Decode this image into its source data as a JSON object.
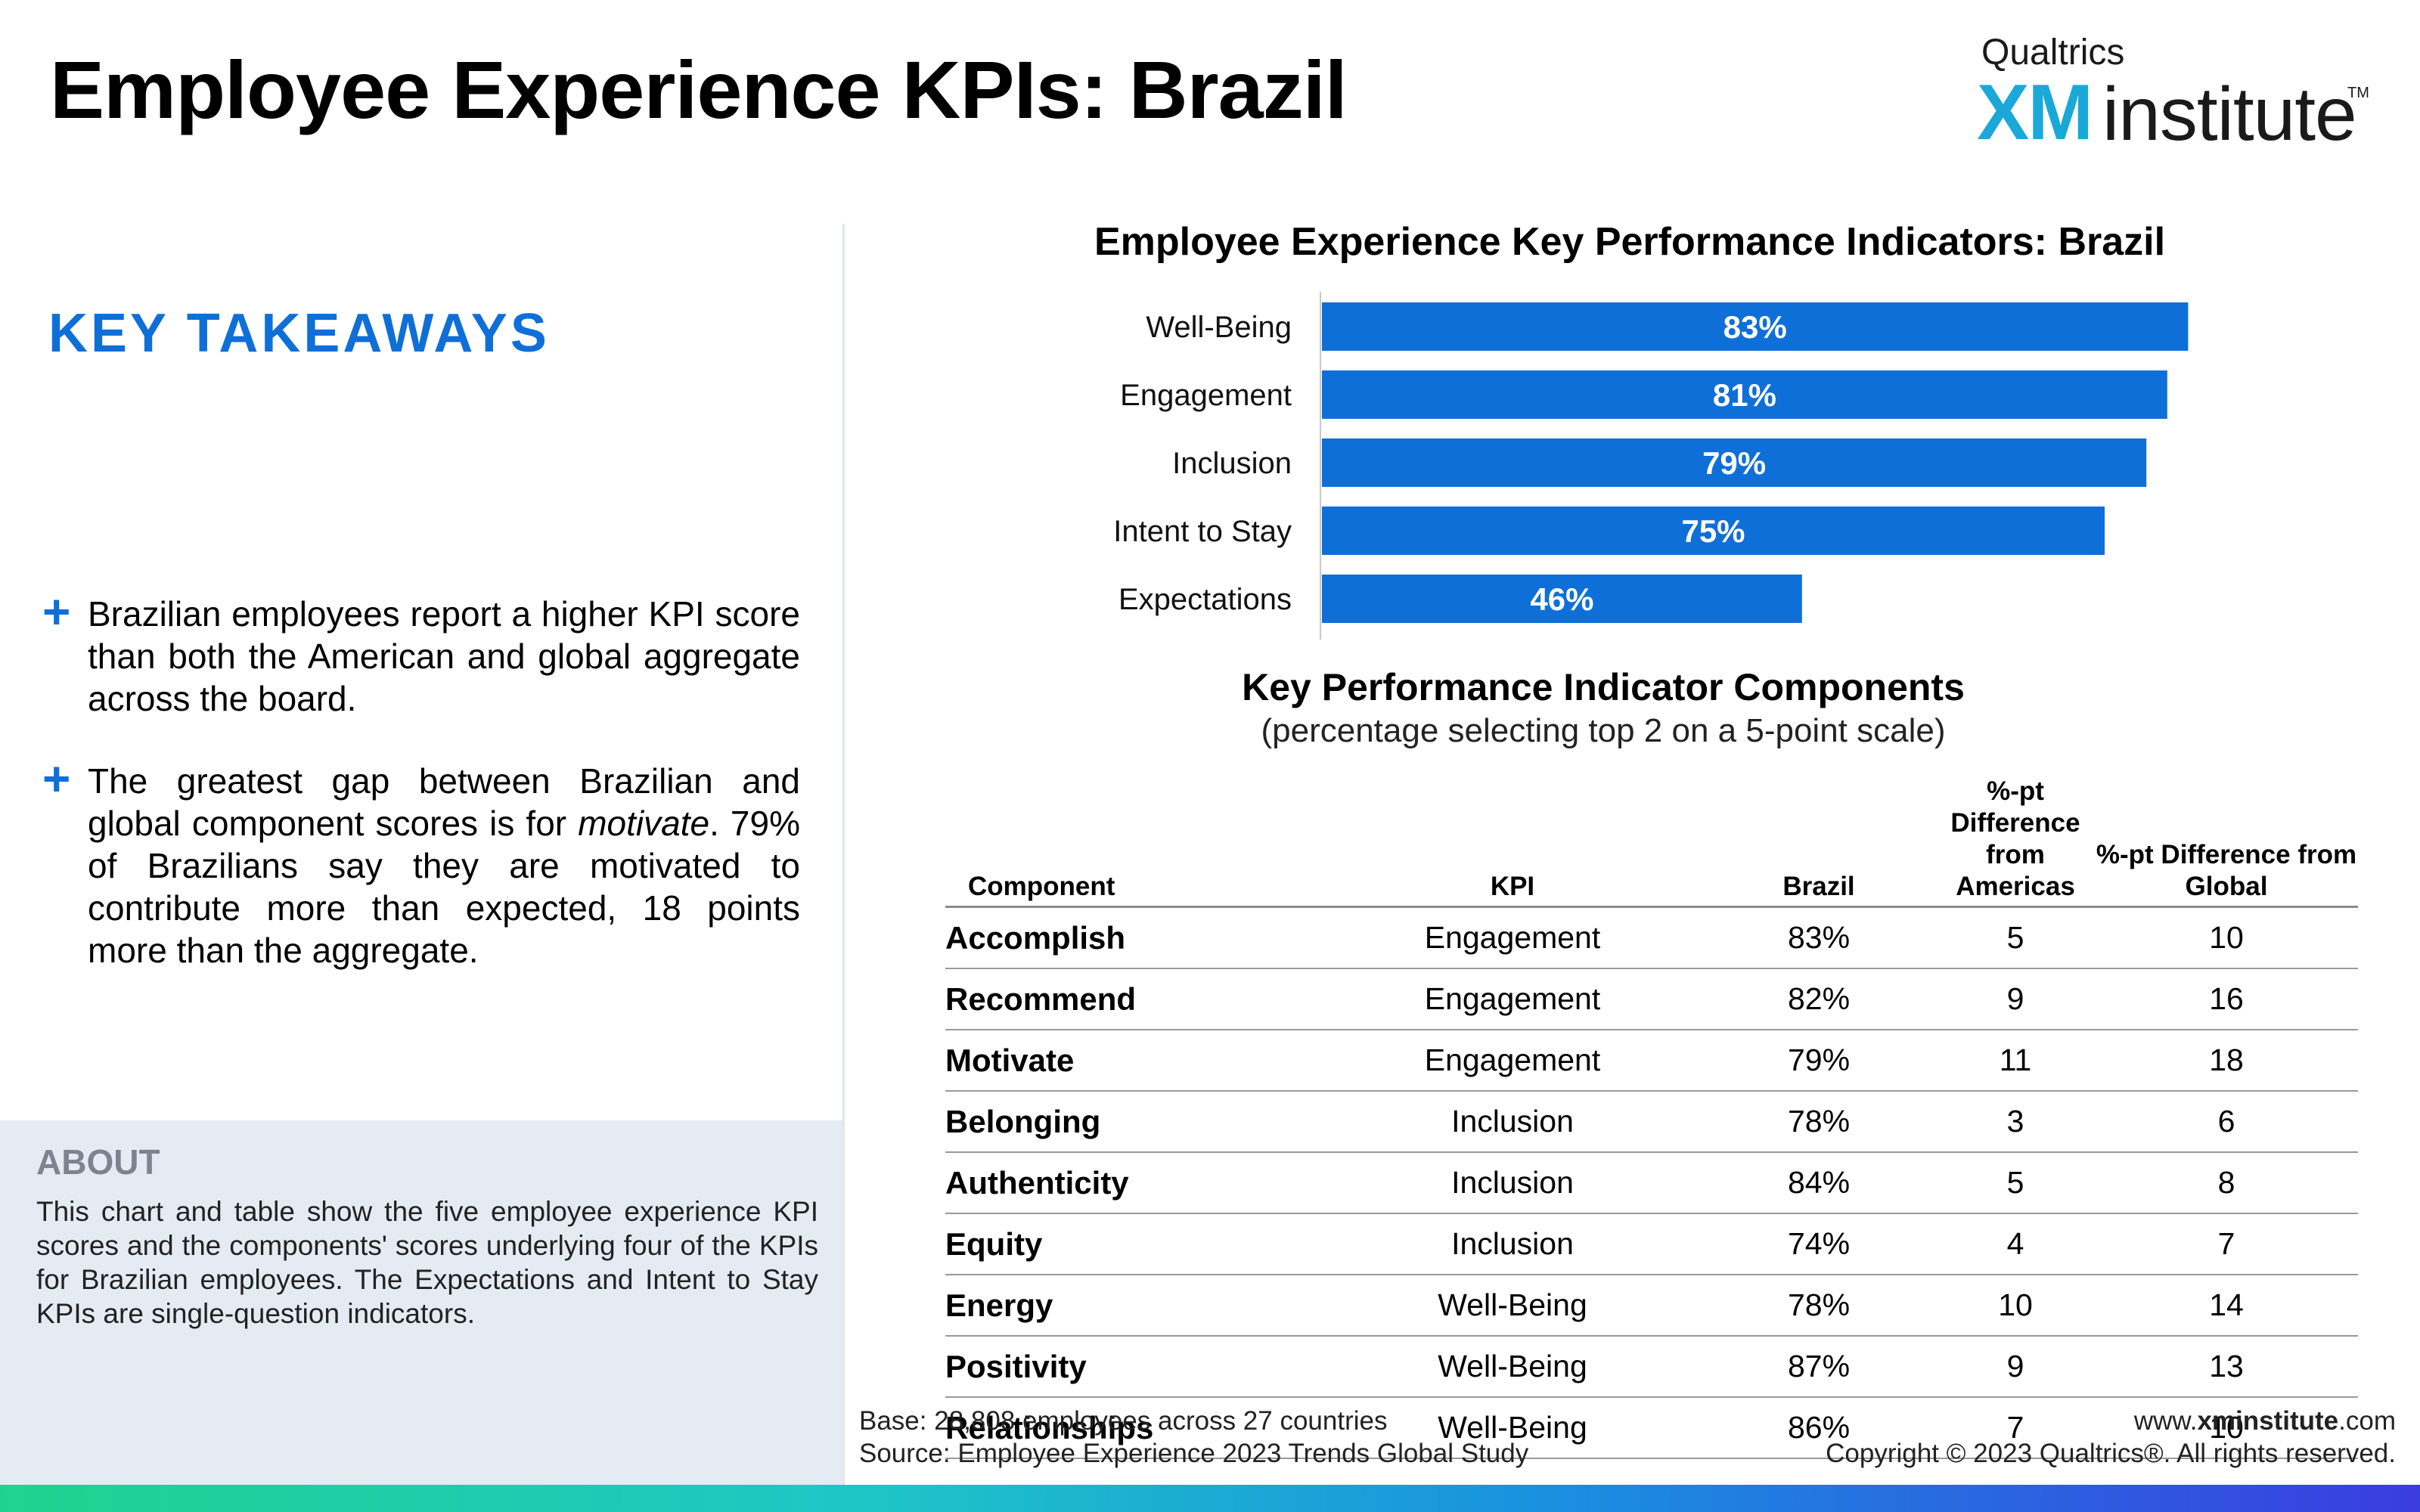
{
  "header": {
    "title": "Employee Experience KPIs: Brazil",
    "logo": {
      "top": "Qualtrics",
      "xm": "XM",
      "word": "institute",
      "tm": "TM"
    }
  },
  "takeaways": {
    "heading": "KEY TAKEAWAYS",
    "bullet_icon": "+",
    "items": [
      {
        "text": "Brazilian employees report a higher KPI score than both the American and global aggregate across the board."
      },
      {
        "pre": "The greatest gap between Brazilian and global component scores is for ",
        "em": "motivate",
        "post": ". 79% of Brazilians say they are motivated to contribute more than expected, 18 points more than the aggregate."
      }
    ]
  },
  "about": {
    "heading": "ABOUT",
    "text": "This chart and table show the five employee experience KPI scores and the components' scores underlying four of the KPIs for Brazilian employees. The Expectations and Intent to Stay KPIs are single-question indicators."
  },
  "chart_data": {
    "type": "bar",
    "orientation": "horizontal",
    "title": "Employee Experience Key Performance Indicators: Brazil",
    "categories": [
      "Well-Being",
      "Engagement",
      "Inclusion",
      "Intent to Stay",
      "Expectations"
    ],
    "values": [
      83,
      81,
      79,
      75,
      46
    ],
    "value_labels": [
      "83%",
      "81%",
      "79%",
      "75%",
      "46%"
    ],
    "unit": "%",
    "xlim": [
      0,
      100
    ],
    "bar_color": "#0f6fd8",
    "grid": false,
    "legend": "none"
  },
  "table": {
    "title": "Key Performance Indicator Components",
    "subtitle": "(percentage selecting top 2 on a 5-point scale)",
    "headers": [
      "Component",
      "KPI",
      "Brazil",
      "%-pt Difference from Americas",
      "%-pt Difference from Global"
    ],
    "rows": [
      [
        "Accomplish",
        "Engagement",
        "83%",
        "5",
        "10"
      ],
      [
        "Recommend",
        "Engagement",
        "82%",
        "9",
        "16"
      ],
      [
        "Motivate",
        "Engagement",
        "79%",
        "11",
        "18"
      ],
      [
        "Belonging",
        "Inclusion",
        "78%",
        "3",
        "6"
      ],
      [
        "Authenticity",
        "Inclusion",
        "84%",
        "5",
        "8"
      ],
      [
        "Equity",
        "Inclusion",
        "74%",
        "4",
        "7"
      ],
      [
        "Energy",
        "Well-Being",
        "78%",
        "10",
        "14"
      ],
      [
        "Positivity",
        "Well-Being",
        "87%",
        "9",
        "13"
      ],
      [
        "Relationships",
        "Well-Being",
        "86%",
        "7",
        "10"
      ]
    ]
  },
  "footer": {
    "base": "Base: 28,808 employees across 27 countries",
    "source": "Source: Employee Experience 2023 Trends Global Study",
    "site_prefix": "www.",
    "site_bold": "xminstitute",
    "site_suffix": ".com",
    "copyright": "Copyright © 2023 Qualtrics®. All rights reserved."
  }
}
